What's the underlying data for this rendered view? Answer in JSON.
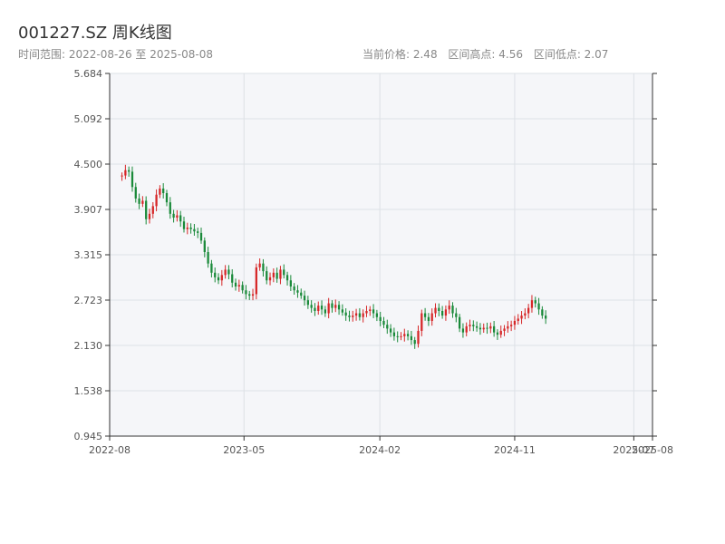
{
  "header": {
    "title": "001227.SZ 周K线图",
    "subtitle": "时间范围: 2022-08-26 至 2025-08-08",
    "stats": {
      "price": "当前价格: 2.48",
      "high": "区间高点: 4.56",
      "low": "区间低点: 2.07"
    }
  },
  "colors": {
    "up": "#d62728",
    "down": "#1a8a3a",
    "plot_bg": "#f5f6f9",
    "grid": "#dde1e6",
    "axis": "#333333"
  },
  "chart_data": {
    "type": "candlestick",
    "title": "001227.SZ 周K线图",
    "yticks": [
      "0.945",
      "1.538",
      "2.130",
      "2.723",
      "3.315",
      "3.907",
      "4.500",
      "5.092",
      "5.684"
    ],
    "ylim": [
      0.945,
      5.684
    ],
    "xticks": [
      {
        "label": "2022-08",
        "date": "2022-08-01"
      },
      {
        "label": "2023-05",
        "date": "2023-05-01"
      },
      {
        "label": "2024-02",
        "date": "2024-02-01"
      },
      {
        "label": "2024-11",
        "date": "2024-11-01"
      },
      {
        "label": "2025-07",
        "date": "2025-07-01"
      },
      {
        "label": "2025-08",
        "date": "2025-08-08"
      }
    ],
    "xlim": [
      "2022-08-01",
      "2025-08-08"
    ],
    "grid": true,
    "closes": [
      4.35,
      4.42,
      4.4,
      4.2,
      4.05,
      3.98,
      4.02,
      3.78,
      3.85,
      3.95,
      4.1,
      4.18,
      4.12,
      4.0,
      3.85,
      3.8,
      3.83,
      3.75,
      3.65,
      3.67,
      3.65,
      3.62,
      3.6,
      3.5,
      3.35,
      3.2,
      3.08,
      3.02,
      2.98,
      3.05,
      3.12,
      3.06,
      2.95,
      2.9,
      2.92,
      2.85,
      2.8,
      2.78,
      2.8,
      3.15,
      3.2,
      3.1,
      2.98,
      3.02,
      3.08,
      3.0,
      3.12,
      3.05,
      2.98,
      2.9,
      2.85,
      2.82,
      2.78,
      2.72,
      2.66,
      2.62,
      2.58,
      2.65,
      2.6,
      2.55,
      2.68,
      2.62,
      2.66,
      2.6,
      2.56,
      2.52,
      2.5,
      2.52,
      2.55,
      2.5,
      2.55,
      2.58,
      2.6,
      2.55,
      2.5,
      2.45,
      2.4,
      2.35,
      2.3,
      2.25,
      2.24,
      2.25,
      2.28,
      2.25,
      2.2,
      2.15,
      2.32,
      2.55,
      2.5,
      2.45,
      2.55,
      2.62,
      2.58,
      2.52,
      2.6,
      2.65,
      2.55,
      2.5,
      2.35,
      2.3,
      2.38,
      2.4,
      2.38,
      2.36,
      2.34,
      2.36,
      2.35,
      2.38,
      2.3,
      2.27,
      2.32,
      2.35,
      2.38,
      2.4,
      2.45,
      2.48,
      2.52,
      2.55,
      2.62,
      2.72,
      2.68,
      2.6,
      2.52,
      2.48
    ]
  }
}
